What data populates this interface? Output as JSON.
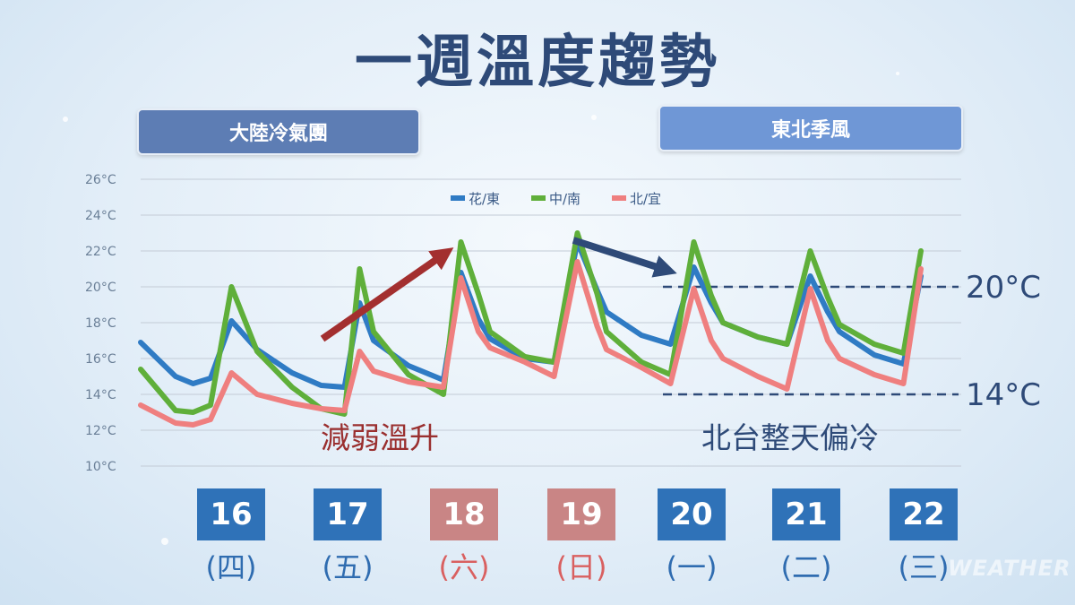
{
  "title": "一週溫度趨勢",
  "banners": {
    "left": "大陸冷氣團",
    "right": "東北季風"
  },
  "watermark": "WEATHER",
  "colors": {
    "hua_dong": "#2f7bc4",
    "zhong_nan": "#5faf3a",
    "bei_yi": "#ef7f7f",
    "blue_box": "#2f72b8",
    "red_box": "#c98585",
    "title": "#2e4a78"
  },
  "days": [
    {
      "date": "16",
      "dow": "(四)",
      "style": "blue"
    },
    {
      "date": "17",
      "dow": "(五)",
      "style": "blue"
    },
    {
      "date": "18",
      "dow": "(六)",
      "style": "red"
    },
    {
      "date": "19",
      "dow": "(日)",
      "style": "red"
    },
    {
      "date": "20",
      "dow": "(一)",
      "style": "blue"
    },
    {
      "date": "21",
      "dow": "(二)",
      "style": "blue"
    },
    {
      "date": "22",
      "dow": "(三)",
      "style": "blue"
    }
  ],
  "chart_data": {
    "type": "line",
    "ylim": [
      10,
      26
    ],
    "y_ticks": [
      "10°C",
      "12°C",
      "14°C",
      "16°C",
      "18°C",
      "20°C",
      "22°C",
      "24°C",
      "26°C"
    ],
    "x_range": [
      0,
      7
    ],
    "grid": true,
    "legend_position": "top-center",
    "series": [
      {
        "name": "花/東",
        "color": "#2f7bc4",
        "x": [
          0,
          0.3,
          0.45,
          0.6,
          0.78,
          1.0,
          1.3,
          1.55,
          1.75,
          1.88,
          2.0,
          2.3,
          2.6,
          2.75,
          2.9,
          3.0,
          3.3,
          3.55,
          3.75,
          3.92,
          4.0,
          4.3,
          4.55,
          4.75,
          4.9,
          5.0,
          5.3,
          5.55,
          5.75,
          5.9,
          6.0,
          6.3,
          6.55,
          6.7
        ],
        "y": [
          16.9,
          15.0,
          14.6,
          14.9,
          18.1,
          16.5,
          15.2,
          14.5,
          14.4,
          19.1,
          17.0,
          15.6,
          14.8,
          20.8,
          18.2,
          17.1,
          16.0,
          15.8,
          22.5,
          19.8,
          18.6,
          17.3,
          16.8,
          21.1,
          19.1,
          18.0,
          17.2,
          16.8,
          20.6,
          18.6,
          17.5,
          16.2,
          15.7,
          20.6
        ]
      },
      {
        "name": "中/南",
        "color": "#5faf3a",
        "x": [
          0,
          0.3,
          0.45,
          0.6,
          0.78,
          1.0,
          1.3,
          1.55,
          1.75,
          1.88,
          2.0,
          2.3,
          2.6,
          2.75,
          2.9,
          3.0,
          3.3,
          3.55,
          3.75,
          3.92,
          4.0,
          4.3,
          4.55,
          4.75,
          4.9,
          5.0,
          5.3,
          5.55,
          5.75,
          5.9,
          6.0,
          6.3,
          6.55,
          6.7
        ],
        "y": [
          15.4,
          13.1,
          13.0,
          13.4,
          20.0,
          16.4,
          14.4,
          13.2,
          12.9,
          21.0,
          17.5,
          15.1,
          14.0,
          22.5,
          19.6,
          17.5,
          16.1,
          15.8,
          23.0,
          19.6,
          17.5,
          15.8,
          15.1,
          22.5,
          19.5,
          18.0,
          17.2,
          16.8,
          22.0,
          19.4,
          17.9,
          16.8,
          16.3,
          22.0
        ]
      },
      {
        "name": "北/宜",
        "color": "#ef7f7f",
        "x": [
          0,
          0.3,
          0.45,
          0.6,
          0.78,
          1.0,
          1.3,
          1.55,
          1.75,
          1.88,
          2.0,
          2.3,
          2.6,
          2.75,
          2.9,
          3.0,
          3.3,
          3.55,
          3.75,
          3.92,
          4.0,
          4.3,
          4.55,
          4.75,
          4.9,
          5.0,
          5.3,
          5.55,
          5.75,
          5.9,
          6.0,
          6.3,
          6.55,
          6.7
        ],
        "y": [
          13.4,
          12.4,
          12.3,
          12.6,
          15.2,
          14.0,
          13.5,
          13.2,
          13.1,
          16.4,
          15.3,
          14.7,
          14.4,
          20.5,
          17.5,
          16.6,
          15.8,
          15.0,
          21.4,
          17.8,
          16.5,
          15.5,
          14.6,
          19.9,
          17.0,
          16.0,
          15.0,
          14.3,
          19.9,
          17.0,
          16.0,
          15.1,
          14.6,
          21.0
        ]
      }
    ],
    "reference_lines": [
      {
        "value": 20,
        "label": "20°C"
      },
      {
        "value": 14,
        "label": "14°C"
      }
    ],
    "annotations": [
      {
        "text": "減弱溫升",
        "color": "#9a2f2f"
      },
      {
        "text": "北台整天偏冷",
        "color": "#2e4a78"
      }
    ]
  }
}
